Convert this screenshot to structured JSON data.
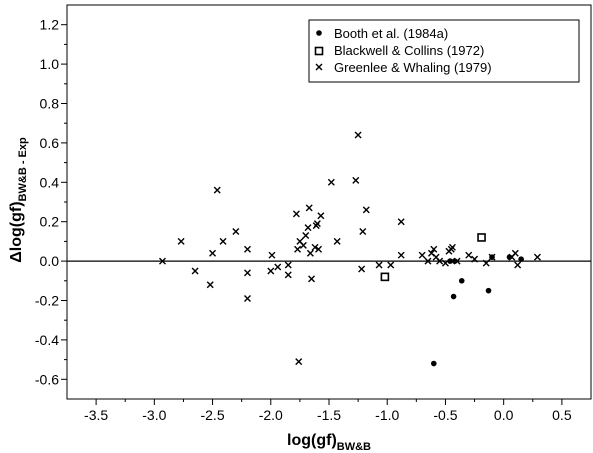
{
  "chart_data": {
    "type": "scatter",
    "title": "",
    "xlabel": "log(gf)",
    "xlabel_sub": "BW&B",
    "ylabel": "Δlog(gf)",
    "ylabel_sub": "BW&B - Exp",
    "xlim": [
      -3.75,
      0.75
    ],
    "ylim": [
      -0.7,
      1.3
    ],
    "x_ticks": [
      -3.5,
      -3.0,
      -2.5,
      -2.0,
      -1.5,
      -1.0,
      -0.5,
      0.0,
      0.5
    ],
    "x_tick_labels": [
      "-3.5",
      "-3.0",
      "-2.5",
      "-2.0",
      "-1.5",
      "-1.0",
      "-0.5",
      "0.0",
      "0.5"
    ],
    "y_ticks": [
      -0.6,
      -0.4,
      -0.2,
      0.0,
      0.2,
      0.4,
      0.6,
      0.8,
      1.0,
      1.2
    ],
    "y_tick_labels": [
      "-0.6",
      "-0.4",
      "-0.2",
      "0.0",
      "0.2",
      "0.4",
      "0.6",
      "0.8",
      "1.0",
      "1.2"
    ],
    "reference_line_y": 0.0,
    "grid": false,
    "legend_position": "top-right",
    "series": [
      {
        "name": "Booth et al. (1984a)",
        "marker": "filled-circle",
        "color": "#000000",
        "points": [
          [
            -0.6,
            -0.52
          ],
          [
            -0.43,
            -0.18
          ],
          [
            -0.36,
            -0.1
          ],
          [
            -0.13,
            -0.15
          ],
          [
            -0.46,
            0.0
          ],
          [
            -0.42,
            0.0
          ],
          [
            -0.1,
            0.02
          ],
          [
            0.05,
            0.02
          ],
          [
            0.15,
            0.01
          ]
        ]
      },
      {
        "name": "Blackwell & Collins (1972)",
        "marker": "open-square",
        "color": "#000000",
        "points": [
          [
            -1.02,
            -0.08
          ],
          [
            -0.19,
            0.12
          ]
        ]
      },
      {
        "name": "Greenlee & Whaling (1979)",
        "marker": "x",
        "color": "#000000",
        "points": [
          [
            -2.93,
            0.0
          ],
          [
            -2.77,
            0.1
          ],
          [
            -2.65,
            -0.05
          ],
          [
            -2.52,
            -0.12
          ],
          [
            -2.5,
            0.04
          ],
          [
            -2.46,
            0.36
          ],
          [
            -2.41,
            0.1
          ],
          [
            -2.3,
            0.15
          ],
          [
            -2.2,
            0.06
          ],
          [
            -2.2,
            -0.06
          ],
          [
            -2.2,
            -0.19
          ],
          [
            -2.0,
            -0.05
          ],
          [
            -1.99,
            0.03
          ],
          [
            -1.94,
            -0.03
          ],
          [
            -1.85,
            -0.02
          ],
          [
            -1.85,
            -0.07
          ],
          [
            -1.78,
            0.24
          ],
          [
            -1.77,
            0.06
          ],
          [
            -1.75,
            0.1
          ],
          [
            -1.72,
            0.08
          ],
          [
            -1.7,
            0.13
          ],
          [
            -1.68,
            0.17
          ],
          [
            -1.67,
            0.27
          ],
          [
            -1.66,
            0.04
          ],
          [
            -1.65,
            -0.09
          ],
          [
            -1.62,
            0.07
          ],
          [
            -1.61,
            0.18
          ],
          [
            -1.6,
            0.19
          ],
          [
            -1.59,
            0.06
          ],
          [
            -1.57,
            0.23
          ],
          [
            -1.48,
            0.4
          ],
          [
            -1.43,
            0.1
          ],
          [
            -1.27,
            0.41
          ],
          [
            -1.25,
            0.64
          ],
          [
            -1.22,
            -0.04
          ],
          [
            -1.21,
            0.15
          ],
          [
            -1.18,
            0.26
          ],
          [
            -1.07,
            -0.02
          ],
          [
            -0.97,
            -0.02
          ],
          [
            -0.88,
            0.2
          ],
          [
            -0.88,
            0.03
          ],
          [
            -0.7,
            0.03
          ],
          [
            -0.65,
            0.0
          ],
          [
            -0.62,
            0.04
          ],
          [
            -0.6,
            0.06
          ],
          [
            -0.58,
            0.02
          ],
          [
            -0.55,
            0.0
          ],
          [
            -0.5,
            -0.01
          ],
          [
            -0.47,
            0.05
          ],
          [
            -0.45,
            0.06
          ],
          [
            -0.44,
            0.07
          ],
          [
            -0.4,
            0.0
          ],
          [
            -0.3,
            0.03
          ],
          [
            -0.25,
            0.01
          ],
          [
            -0.15,
            -0.01
          ],
          [
            -0.1,
            0.02
          ],
          [
            0.07,
            0.02
          ],
          [
            0.1,
            0.04
          ],
          [
            0.12,
            -0.02
          ],
          [
            0.29,
            0.02
          ],
          [
            -1.76,
            -0.51
          ]
        ]
      }
    ]
  }
}
